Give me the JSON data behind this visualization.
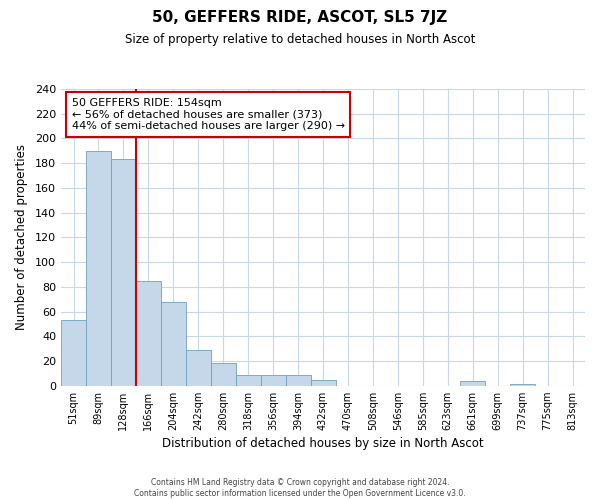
{
  "title": "50, GEFFERS RIDE, ASCOT, SL5 7JZ",
  "subtitle": "Size of property relative to detached houses in North Ascot",
  "xlabel": "Distribution of detached houses by size in North Ascot",
  "ylabel": "Number of detached properties",
  "bar_labels": [
    "51sqm",
    "89sqm",
    "128sqm",
    "166sqm",
    "204sqm",
    "242sqm",
    "280sqm",
    "318sqm",
    "356sqm",
    "394sqm",
    "432sqm",
    "470sqm",
    "508sqm",
    "546sqm",
    "585sqm",
    "623sqm",
    "661sqm",
    "699sqm",
    "737sqm",
    "775sqm",
    "813sqm"
  ],
  "bar_values": [
    53,
    190,
    183,
    85,
    68,
    29,
    18,
    9,
    9,
    9,
    5,
    0,
    0,
    0,
    0,
    0,
    4,
    0,
    1,
    0,
    0
  ],
  "bar_color": "#c5d8ea",
  "bar_edge_color": "#6fa0c0",
  "vline_x_idx": 2.5,
  "vline_color": "#cc0000",
  "ylim": [
    0,
    240
  ],
  "yticks": [
    0,
    20,
    40,
    60,
    80,
    100,
    120,
    140,
    160,
    180,
    200,
    220,
    240
  ],
  "annotation_text": "50 GEFFERS RIDE: 154sqm\n← 56% of detached houses are smaller (373)\n44% of semi-detached houses are larger (290) →",
  "annotation_box_color": "#ffffff",
  "annotation_box_edge": "#cc0000",
  "footer_line1": "Contains HM Land Registry data © Crown copyright and database right 2024.",
  "footer_line2": "Contains public sector information licensed under the Open Government Licence v3.0.",
  "background_color": "#ffffff",
  "grid_color": "#c8d8e8"
}
